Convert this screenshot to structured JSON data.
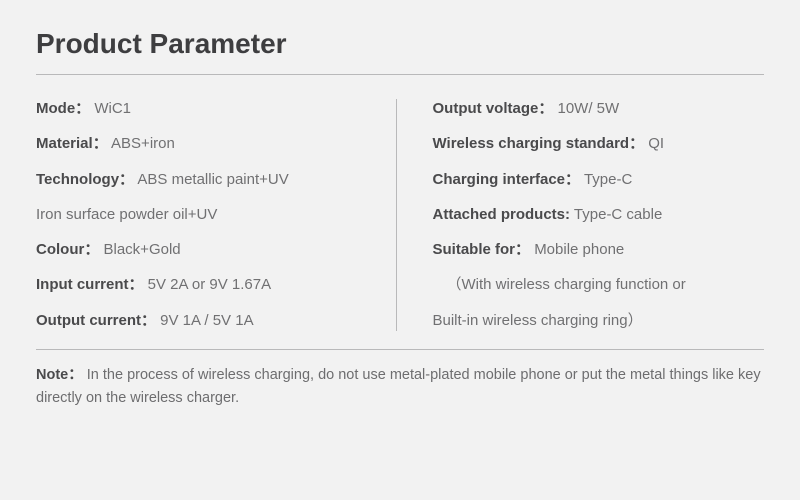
{
  "title": "Product Parameter",
  "left": {
    "mode": {
      "label": "Mode：",
      "value": "WiC1"
    },
    "material": {
      "label": "Material：",
      "value": "ABS+iron"
    },
    "technology": {
      "label": "Technology：",
      "value": "ABS metallic paint+UV"
    },
    "techLine2": "Iron surface powder oil+UV",
    "colour": {
      "label": "Colour：",
      "value": "Black+Gold"
    },
    "inputCurrent": {
      "label": "Input current：",
      "value": "5V 2A or 9V 1.67A"
    },
    "outputCurrent": {
      "label": "Output current：",
      "value": "9V 1A / 5V 1A"
    }
  },
  "right": {
    "outputVoltage": {
      "label": "Output voltage：",
      "value": "10W/ 5W"
    },
    "wirelessStd": {
      "label": "Wireless charging standard：",
      "value": "QI"
    },
    "chargingIf": {
      "label": "Charging interface：",
      "value": "Type-C"
    },
    "attached": {
      "label": "Attached products:",
      "value": "Type-C cable"
    },
    "suitable": {
      "label": "Suitable for：",
      "value": "Mobile phone"
    },
    "suitableLine2": "（With wireless charging function or",
    "suitableLine3": "Built-in wireless charging ring）"
  },
  "note": {
    "label": "Note：",
    "text": "In the process of wireless charging, do not use metal-plated mobile phone or put the metal things like key directly on the wireless charger."
  }
}
